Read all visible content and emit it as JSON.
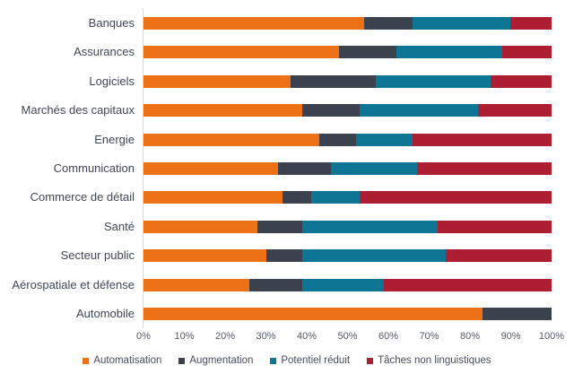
{
  "chart_data": {
    "type": "bar",
    "orientation": "horizontal",
    "stacked": true,
    "title": "",
    "xlabel": "",
    "ylabel": "",
    "xlim": [
      0,
      100
    ],
    "grid": false,
    "legend_position": "bottom",
    "x_ticks": [
      "0%",
      "10%",
      "20%",
      "30%",
      "40%",
      "50%",
      "60%",
      "70%",
      "80%",
      "90%",
      "100%"
    ],
    "categories": [
      "Banques",
      "Assurances",
      "Logiciels",
      "Marchés des capitaux",
      "Energie",
      "Communication",
      "Commerce de détail",
      "Santé",
      "Secteur public",
      "Aérospatiale et défense",
      "Automobile"
    ],
    "series": [
      {
        "name": "Automatisation",
        "color": "#ED7117",
        "values": [
          54,
          48,
          36,
          39,
          43,
          33,
          34,
          28,
          30,
          26,
          83
        ]
      },
      {
        "name": "Augmentation",
        "color": "#3C414E",
        "values": [
          12,
          14,
          21,
          14,
          9,
          13,
          7,
          11,
          9,
          13,
          17
        ]
      },
      {
        "name": "Potentiel réduit",
        "color": "#0E7694",
        "values": [
          24,
          26,
          28,
          29,
          14,
          21,
          12,
          33,
          35,
          20,
          0
        ]
      },
      {
        "name": "Tâches non linguistiques",
        "color": "#AE1E32",
        "values": [
          10,
          12,
          15,
          18,
          34,
          33,
          47,
          28,
          26,
          41,
          0
        ]
      }
    ]
  },
  "colors": {
    "axis_line": "#D9D9D9",
    "category_text": "#3F4656",
    "tick_text": "#555A6A"
  }
}
